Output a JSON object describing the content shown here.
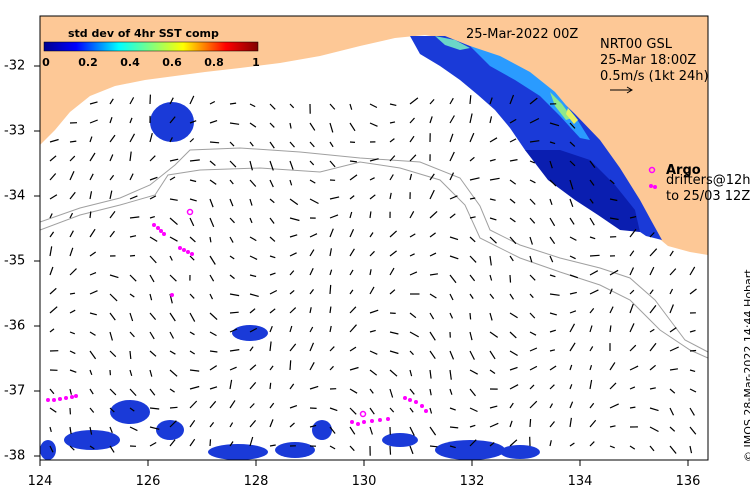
{
  "colorbar": {
    "title": "std dev of 4hr SST comp",
    "ticks": [
      "0",
      "0.2",
      "0.4",
      "0.6",
      "0.8",
      "1"
    ]
  },
  "header": {
    "date": "25-Mar-2022 00Z",
    "current_source": "NRT00 GSL",
    "current_time": "25-Mar 18:00Z",
    "scale_label": "0.5m/s (1kt 24h)"
  },
  "legend": {
    "argo_label": "Argo",
    "drifters_line1": "drifters@12h",
    "drifters_line2": "to 25/03 12Z",
    "argo_color": "#ff00ff"
  },
  "axes": {
    "x_ticks": [
      "124",
      "126",
      "128",
      "130",
      "132",
      "134",
      "136"
    ],
    "y_ticks": [
      "-32",
      "-33",
      "-34",
      "-35",
      "-36",
      "-37",
      "-38"
    ]
  },
  "credit": "© IMOS 28-Mar-2022 14:44 Hobart",
  "colors": {
    "land": "#fdc896",
    "bathymetry": "#a0a0a0",
    "marker": "#ff00ff"
  }
}
